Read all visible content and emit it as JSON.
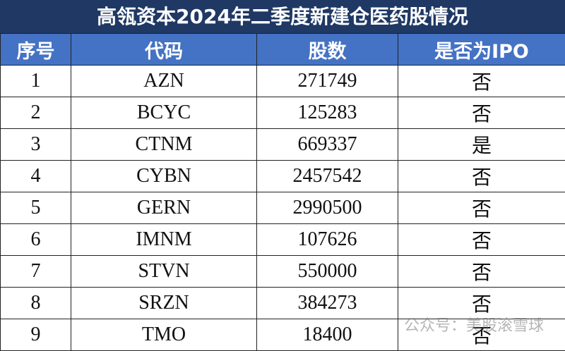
{
  "header": {
    "title": "高瓴资本2024年二季度新建仓医药股情况"
  },
  "table": {
    "columns": [
      "序号",
      "代码",
      "股数",
      "是否为IPO"
    ],
    "rows": [
      [
        1,
        "AZN",
        271749,
        "否"
      ],
      [
        2,
        "BCYC",
        125283,
        "否"
      ],
      [
        3,
        "CTNM",
        669337,
        "是"
      ],
      [
        4,
        "CYBN",
        2457542,
        "否"
      ],
      [
        5,
        "GERN",
        2990500,
        "否"
      ],
      [
        6,
        "IMNM",
        107626,
        "否"
      ],
      [
        7,
        "STVN",
        550000,
        "否"
      ],
      [
        8,
        "SRZN",
        384273,
        "否"
      ],
      [
        9,
        "TMO",
        18400,
        "否"
      ]
    ]
  },
  "watermark": "公众号：美股滚雪球"
}
